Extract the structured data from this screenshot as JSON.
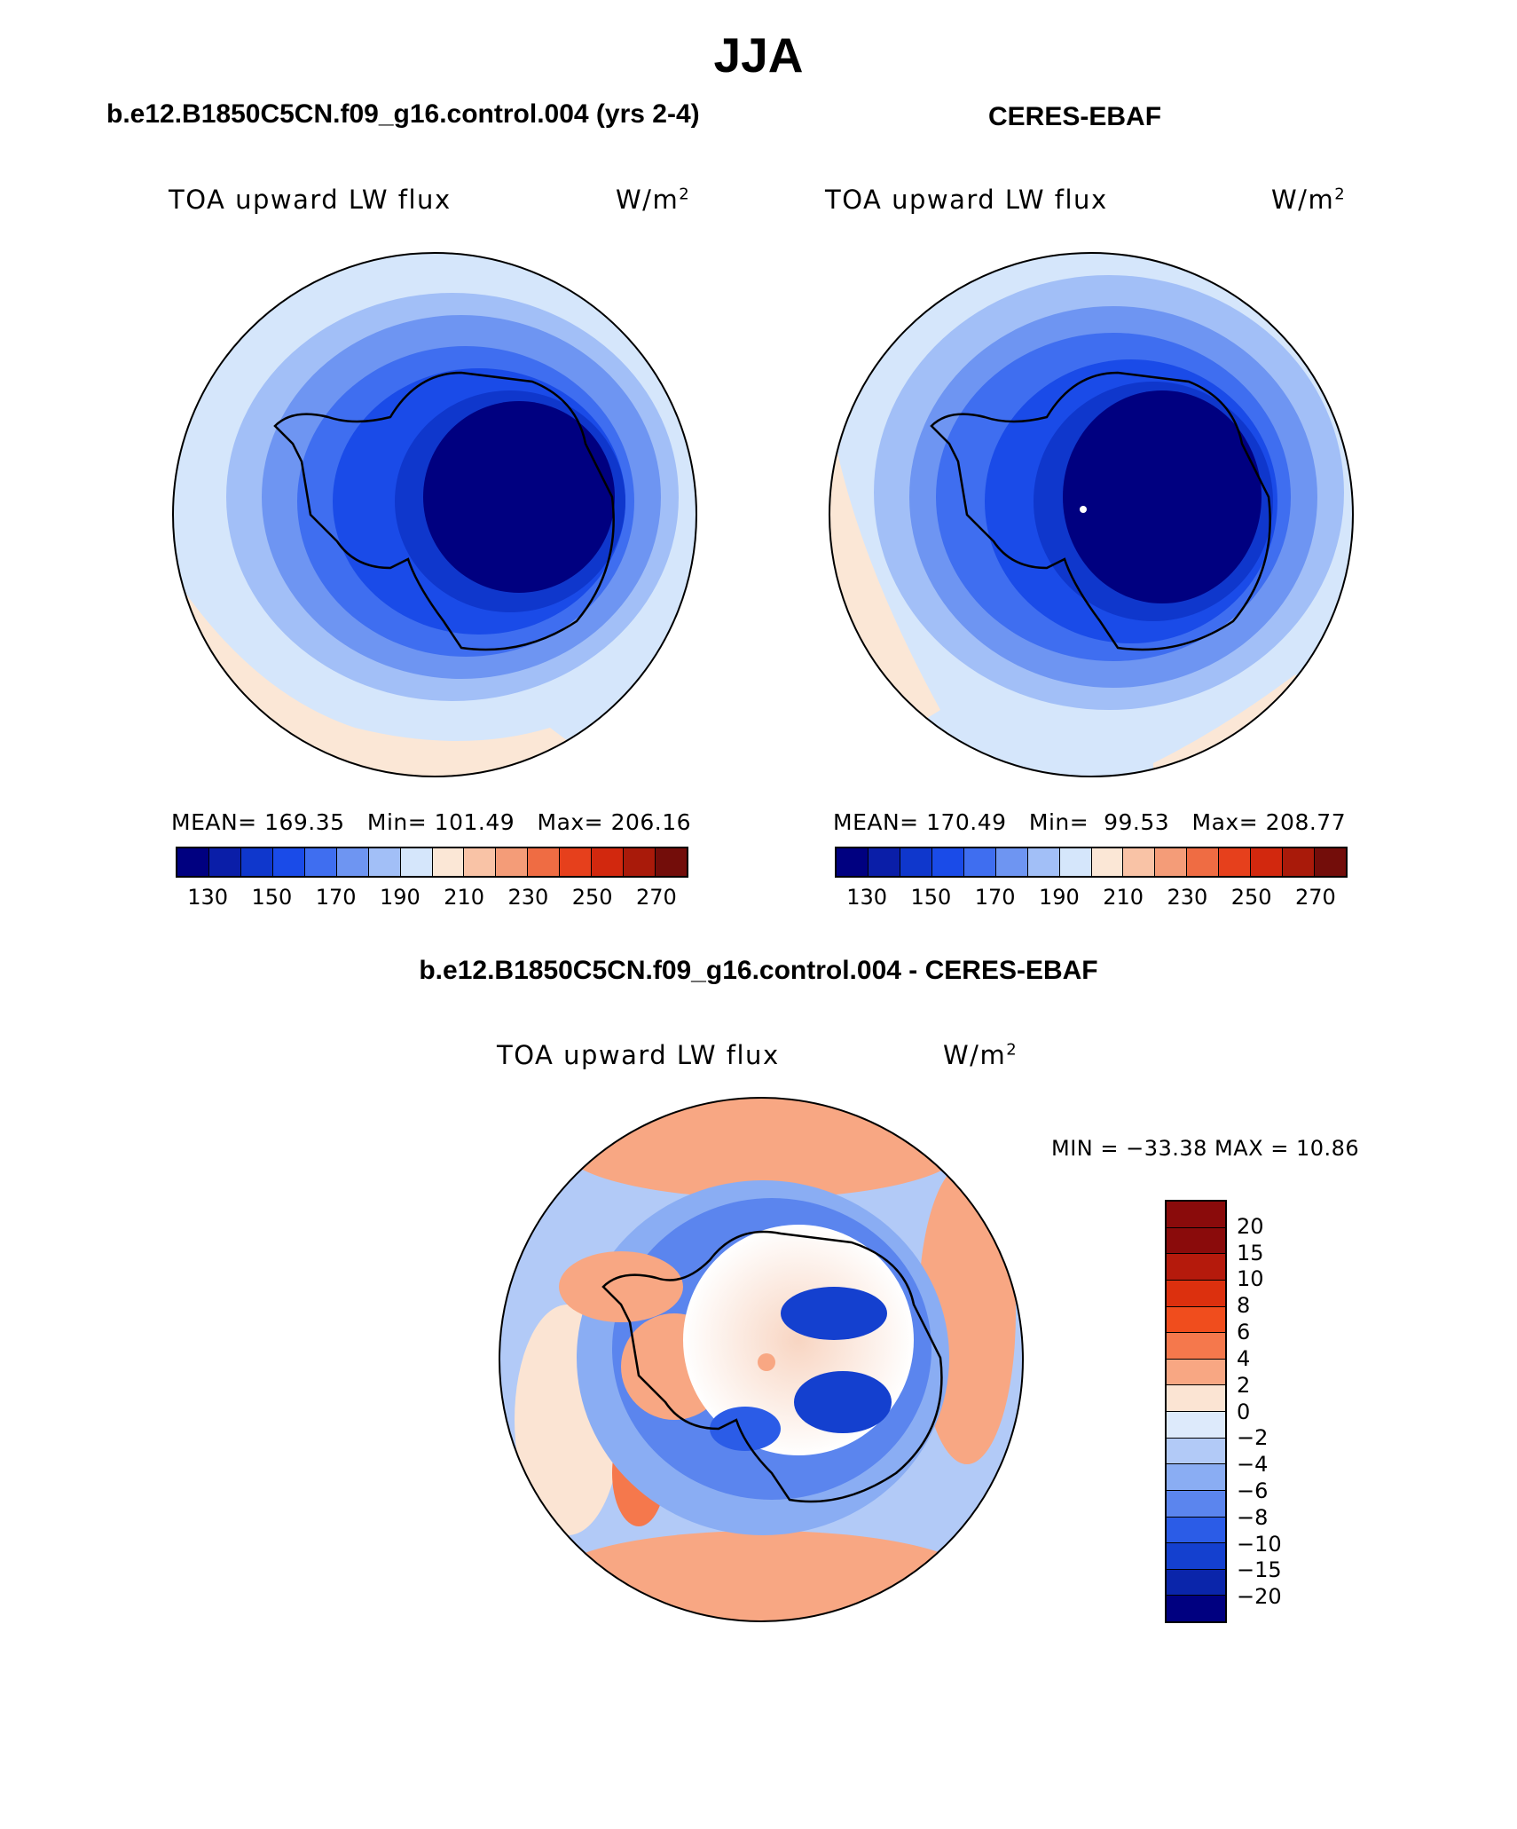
{
  "title": "JJA",
  "panels": [
    {
      "heading": "b.e12.B1850C5CN.f09_g16.control.004 (yrs 2-4)",
      "variable": "TOA upward LW flux",
      "units": "W/m",
      "units_exp": "2",
      "mean_label": "MEAN=",
      "mean": "169.35",
      "min_label": "Min=",
      "min": "101.49",
      "max_label": "Max=",
      "max": "206.16"
    },
    {
      "heading": "CERES-EBAF",
      "variable": "TOA upward LW flux",
      "units": "W/m",
      "units_exp": "2",
      "mean_label": "MEAN=",
      "mean": "170.49",
      "min_label": "Min=",
      "min": "99.53",
      "max_label": "Max=",
      "max": "208.77"
    }
  ],
  "diff": {
    "heading": "b.e12.B1850C5CN.f09_g16.control.004 - CERES-EBAF",
    "variable": "TOA upward LW flux",
    "units": "W/m",
    "units_exp": "2",
    "minmax": "MIN = −33.38 MAX =   10.86"
  },
  "abs_colorbar": {
    "colors": [
      "#000080",
      "#0a1ea8",
      "#0f37cc",
      "#1a4be8",
      "#3f6ef0",
      "#6e95f2",
      "#a2bff7",
      "#d5e6fb",
      "#fbe7d6",
      "#f9c3a6",
      "#f49c78",
      "#ef6c43",
      "#e6401c",
      "#d2280e",
      "#a91a0a",
      "#730d0a"
    ],
    "ticks": [
      "130",
      "150",
      "170",
      "190",
      "210",
      "230",
      "250",
      "270"
    ]
  },
  "diff_colorbar": {
    "colors": [
      "#8a0b0b",
      "#b51a0c",
      "#dc300e",
      "#f04d1d",
      "#f5784c",
      "#f8a783",
      "#fbe4d3",
      "#ddeafb",
      "#b2caf7",
      "#8aadf3",
      "#5b85ee",
      "#2b5ce7",
      "#1440cf",
      "#0a25aa",
      "#000080"
    ],
    "ticks": [
      "20",
      "15",
      "10",
      "8",
      "6",
      "4",
      "2",
      "0",
      "−2",
      "−4",
      "−6",
      "−8",
      "−10",
      "−15",
      "−20"
    ]
  }
}
